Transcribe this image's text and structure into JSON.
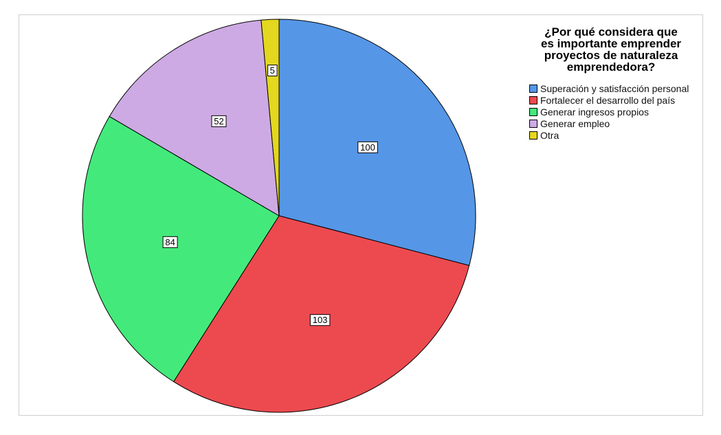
{
  "chart_data": {
    "type": "pie",
    "title": "¿Por qué considera que es importante emprender proyectos de naturaleza emprendedora?",
    "title_lines": [
      "¿Por qué considera que",
      "es importante emprender",
      "proyectos de naturaleza",
      "emprendedora?"
    ],
    "slices": [
      {
        "label": "Superación y satisfacción personal",
        "value": 100,
        "color": "#5596e6"
      },
      {
        "label": "Fortalecer el desarrollo del país",
        "value": 103,
        "color": "#ec4a4f"
      },
      {
        "label": "Generar ingresos propios",
        "value": 84,
        "color": "#43ea7b"
      },
      {
        "label": "Generar empleo",
        "value": 52,
        "color": "#cdaae3"
      },
      {
        "label": "Otra",
        "value": 5,
        "color": "#e3d71f"
      }
    ],
    "legend_position": "top-right",
    "direction": "clockwise",
    "start": "top"
  }
}
